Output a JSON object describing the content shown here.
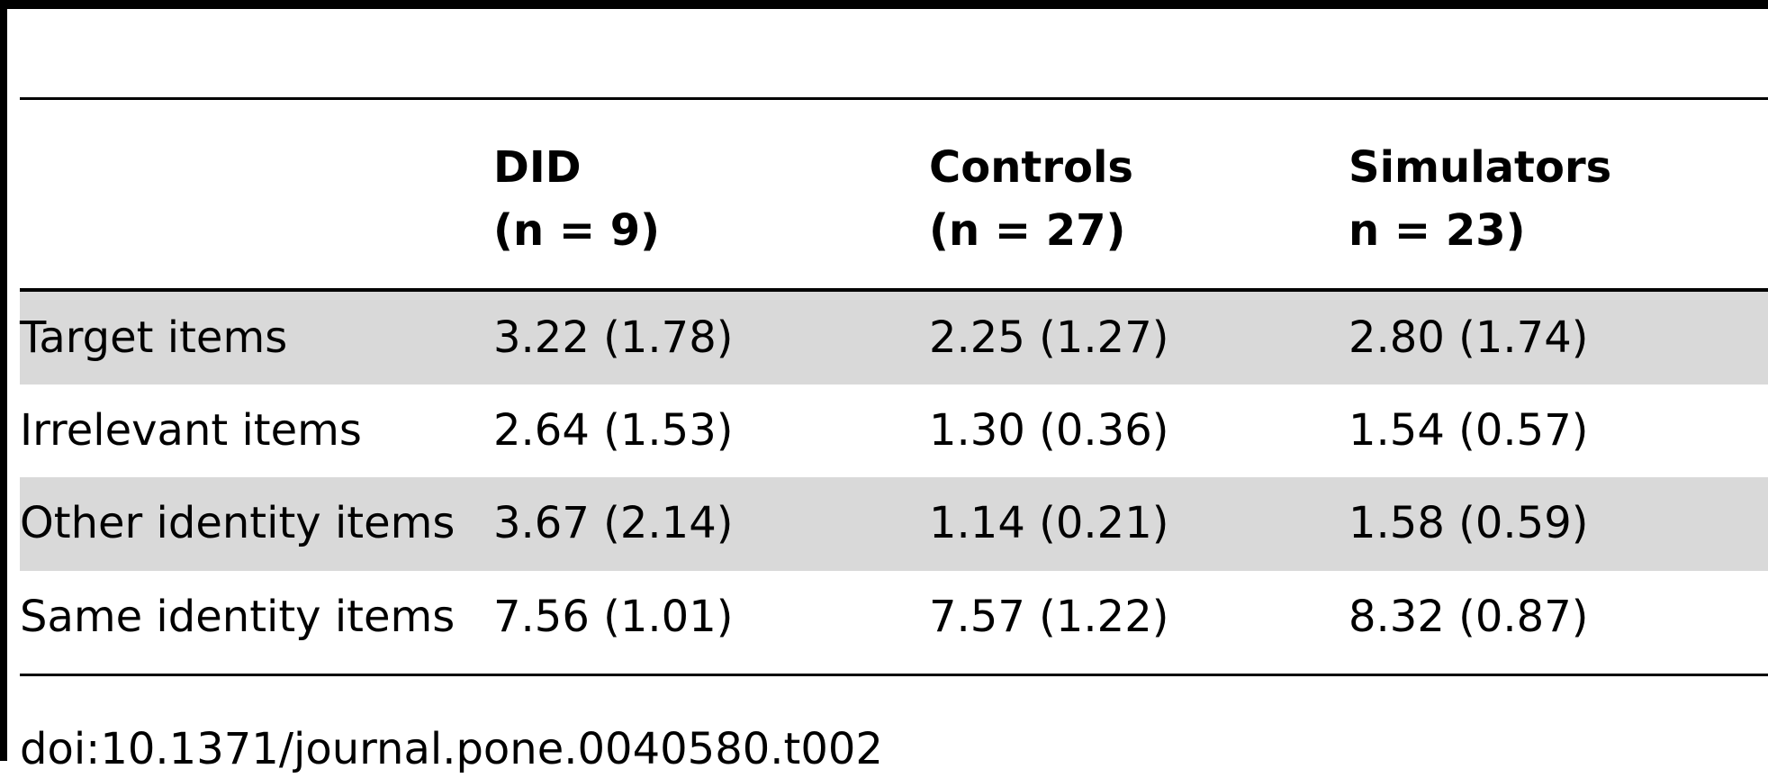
{
  "table": {
    "columns": [
      {
        "line1": "",
        "line2": ""
      },
      {
        "line1": "DID",
        "line2": "(n = 9)"
      },
      {
        "line1": "Controls",
        "line2": "(n = 27)"
      },
      {
        "line1": "Simulators",
        "line2": "n = 23)"
      }
    ],
    "rows": [
      {
        "label": "Target items",
        "did": "3.22 (1.78)",
        "controls": "2.25 (1.27)",
        "simulators": "2.80 (1.74)"
      },
      {
        "label": "Irrelevant items",
        "did": "2.64 (1.53)",
        "controls": "1.30 (0.36)",
        "simulators": "1.54 (0.57)"
      },
      {
        "label": "Other identity items",
        "did": "3.67 (2.14)",
        "controls": "1.14 (0.21)",
        "simulators": "1.58 (0.59)"
      },
      {
        "label": "Same identity items",
        "did": "7.56 (1.01)",
        "controls": "7.57 (1.22)",
        "simulators": "8.32 (0.87)"
      }
    ],
    "shade_color": "#d9d9d9"
  },
  "doi": "doi:10.1371/journal.pone.0040580.t002"
}
